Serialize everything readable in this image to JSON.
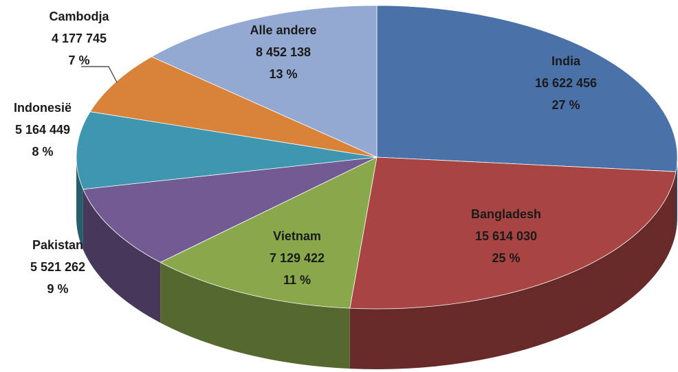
{
  "chart_data": {
    "type": "pie3d",
    "categories": [
      "India",
      "Bangladesh",
      "Vietnam",
      "Pakistan",
      "Indonesië",
      "Cambodja",
      "Alle andere"
    ],
    "values": [
      16622456,
      15614030,
      7129422,
      5521262,
      5164449,
      4177745,
      8452138
    ],
    "value_labels": [
      "16 622 456",
      "15 614 030",
      "7 129 422",
      "5 521 262",
      "5 164 449",
      "4 177 745",
      "8 452 138"
    ],
    "percent_labels": [
      "27 %",
      "25 %",
      "11 %",
      "9 %",
      "8 %",
      "7 %",
      "13 %"
    ],
    "colors": [
      "#4a72a8",
      "#a84442",
      "#89a84b",
      "#725a92",
      "#3e97ae",
      "#d8823a",
      "#93a9d1"
    ]
  }
}
